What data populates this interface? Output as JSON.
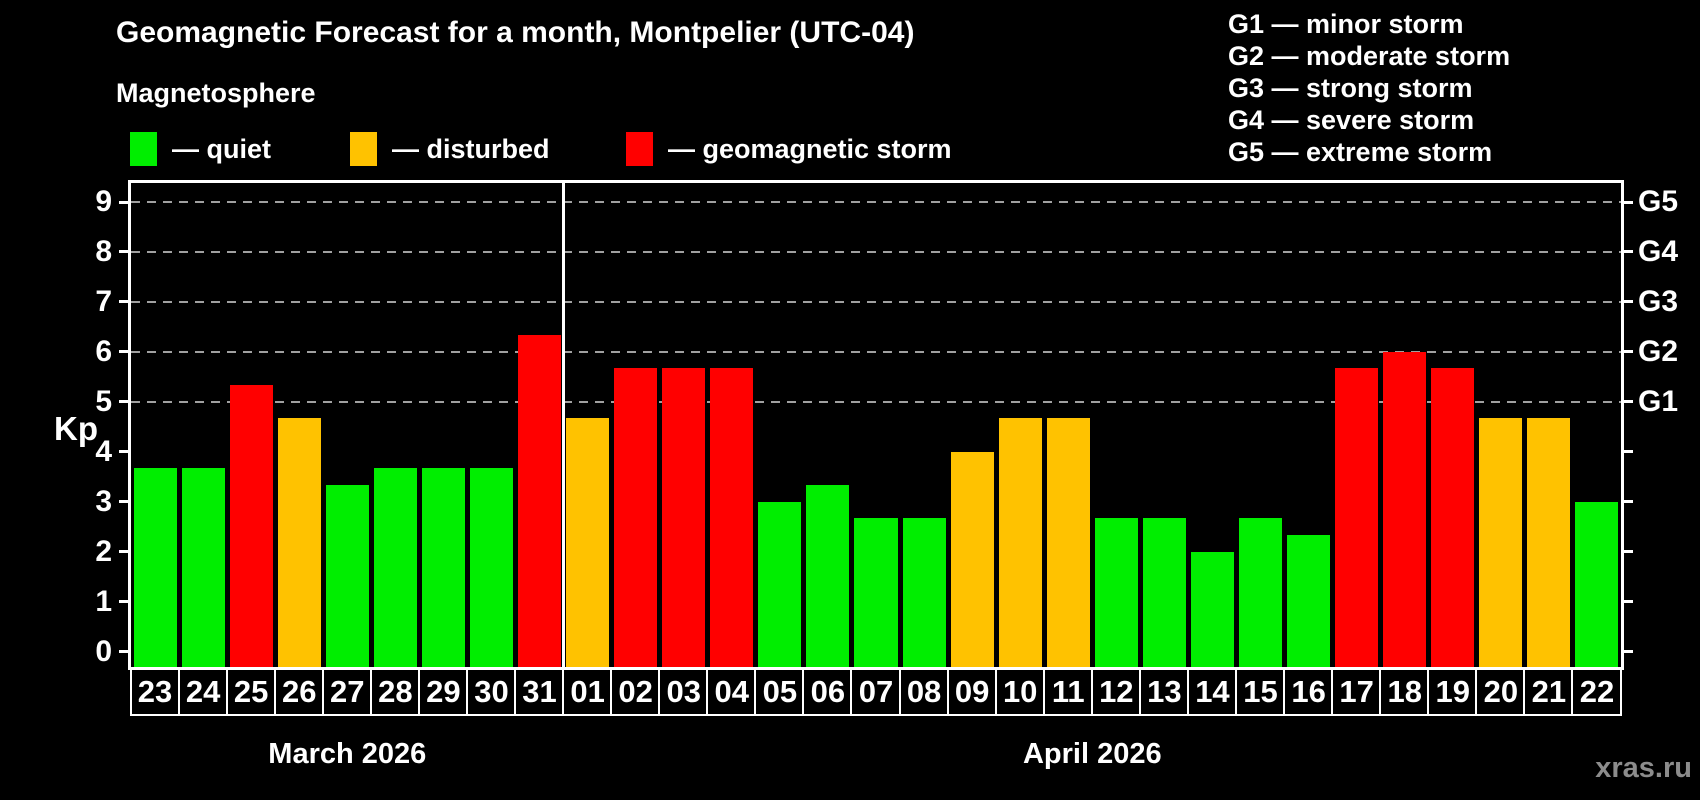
{
  "title": "Geomagnetic Forecast for a month, Montpelier (UTC-04)",
  "subtitle": "Magnetosphere",
  "magnetosphere_legend": [
    {
      "status": "quiet",
      "label": "— quiet"
    },
    {
      "status": "disturbed",
      "label": "— disturbed"
    },
    {
      "status": "storm",
      "label": "— geomagnetic storm"
    }
  ],
  "g_scale_legend": [
    {
      "code": "G1",
      "label": "G1 — minor storm"
    },
    {
      "code": "G2",
      "label": "G2 — moderate storm"
    },
    {
      "code": "G3",
      "label": "G3 — strong storm"
    },
    {
      "code": "G4",
      "label": "G4 — severe storm"
    },
    {
      "code": "G5",
      "label": "G5 — extreme storm"
    }
  ],
  "watermark": "xras.ru",
  "colors": {
    "quiet": "#00ee00",
    "disturbed": "#ffc200",
    "storm": "#ff0000",
    "background": "#000000",
    "text": "#ffffff",
    "grid": "#a0a0a0",
    "watermark": "#8c8c8c"
  },
  "chart_data": {
    "type": "bar",
    "title": "Geomagnetic Forecast for a month, Montpelier (UTC-04)",
    "ylabel": "Kp",
    "ylim": [
      0,
      9
    ],
    "y_ticks": [
      0,
      1,
      2,
      3,
      4,
      5,
      6,
      7,
      8,
      9
    ],
    "grid_levels": [
      5,
      6,
      7,
      8,
      9
    ],
    "grid_style": "dashed",
    "legend_position": "top",
    "right_axis_labels": [
      {
        "label": "G1",
        "value": 5
      },
      {
        "label": "G2",
        "value": 6
      },
      {
        "label": "G3",
        "value": 7
      },
      {
        "label": "G4",
        "value": 8
      },
      {
        "label": "G5",
        "value": 9
      }
    ],
    "months": [
      {
        "label": "March 2026",
        "day_count": 9
      },
      {
        "label": "April 2026",
        "day_count": 22
      }
    ],
    "categories": [
      "23",
      "24",
      "25",
      "26",
      "27",
      "28",
      "29",
      "30",
      "31",
      "01",
      "02",
      "03",
      "04",
      "05",
      "06",
      "07",
      "08",
      "09",
      "10",
      "11",
      "12",
      "13",
      "14",
      "15",
      "16",
      "17",
      "18",
      "19",
      "20",
      "21",
      "22"
    ],
    "values": [
      3.67,
      3.67,
      5.33,
      4.67,
      3.33,
      3.67,
      3.67,
      3.67,
      6.33,
      4.67,
      5.67,
      5.67,
      5.67,
      3.0,
      3.33,
      2.67,
      2.67,
      4.0,
      4.67,
      4.67,
      2.67,
      2.67,
      2.0,
      2.67,
      2.33,
      5.67,
      6.0,
      5.67,
      4.67,
      4.67,
      3.0
    ],
    "statuses": [
      "quiet",
      "quiet",
      "storm",
      "disturbed",
      "quiet",
      "quiet",
      "quiet",
      "quiet",
      "storm",
      "disturbed",
      "storm",
      "storm",
      "storm",
      "quiet",
      "quiet",
      "quiet",
      "quiet",
      "disturbed",
      "disturbed",
      "disturbed",
      "quiet",
      "quiet",
      "quiet",
      "quiet",
      "quiet",
      "storm",
      "storm",
      "storm",
      "disturbed",
      "disturbed",
      "quiet"
    ]
  }
}
